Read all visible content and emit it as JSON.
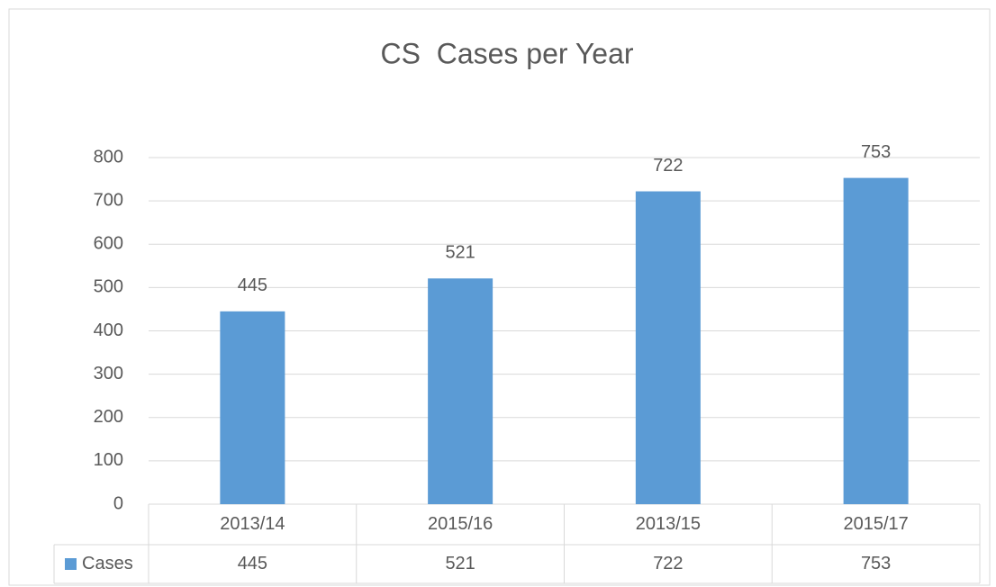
{
  "chart_data": {
    "type": "bar",
    "title": "CS  Cases per Year",
    "categories": [
      "2013/14",
      "2015/16",
      "2013/15",
      "2015/17"
    ],
    "series": [
      {
        "name": "Cases",
        "color": "#5b9bd5",
        "values": [
          445,
          521,
          722,
          753
        ]
      }
    ],
    "ylim": [
      0,
      800
    ],
    "yticks": [
      0,
      100,
      200,
      300,
      400,
      500,
      600,
      700,
      800
    ],
    "grid": true,
    "data_table": true
  }
}
